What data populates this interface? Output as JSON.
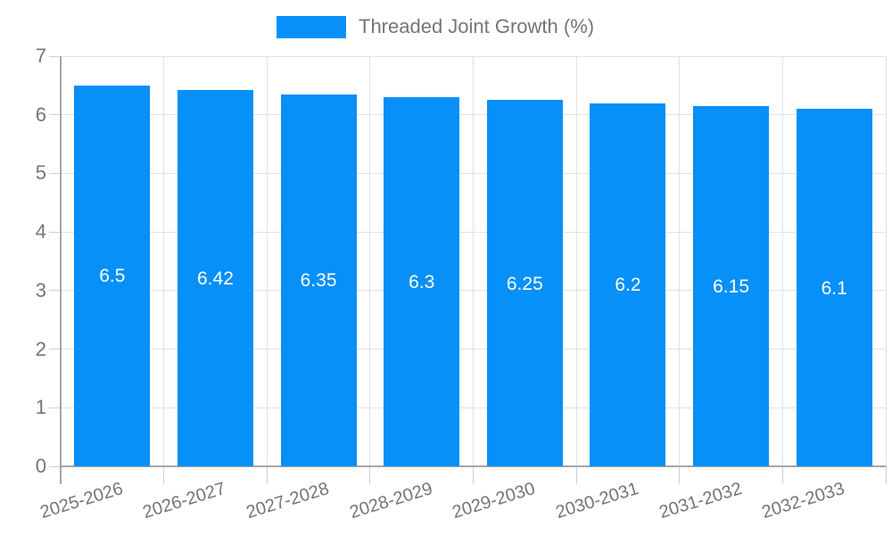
{
  "chart_data": {
    "type": "bar",
    "title": "",
    "legend": {
      "label": "Threaded Joint Growth (%)",
      "position": "top"
    },
    "categories": [
      "2025-2026",
      "2026-2027",
      "2027-2028",
      "2028-2029",
      "2029-2030",
      "2030-2031",
      "2031-2032",
      "2032-2033"
    ],
    "values": [
      6.5,
      6.42,
      6.35,
      6.3,
      6.25,
      6.2,
      6.15,
      6.1
    ],
    "value_labels": [
      "6.5",
      "6.42",
      "6.35",
      "6.3",
      "6.25",
      "6.2",
      "6.15",
      "6.1"
    ],
    "xlabel": "",
    "ylabel": "",
    "ylim": [
      0,
      7
    ],
    "yticks": [
      0,
      1,
      2,
      3,
      4,
      5,
      6,
      7
    ],
    "grid": true,
    "colors": {
      "bar": "#0690F8",
      "axis_text": "#757575",
      "bar_label_text": "#ffffff",
      "grid_line": "#e2e2e2",
      "axis_line": "#a6a6a6",
      "tick_mark": "#cfcfcf",
      "background": "#ffffff"
    }
  }
}
